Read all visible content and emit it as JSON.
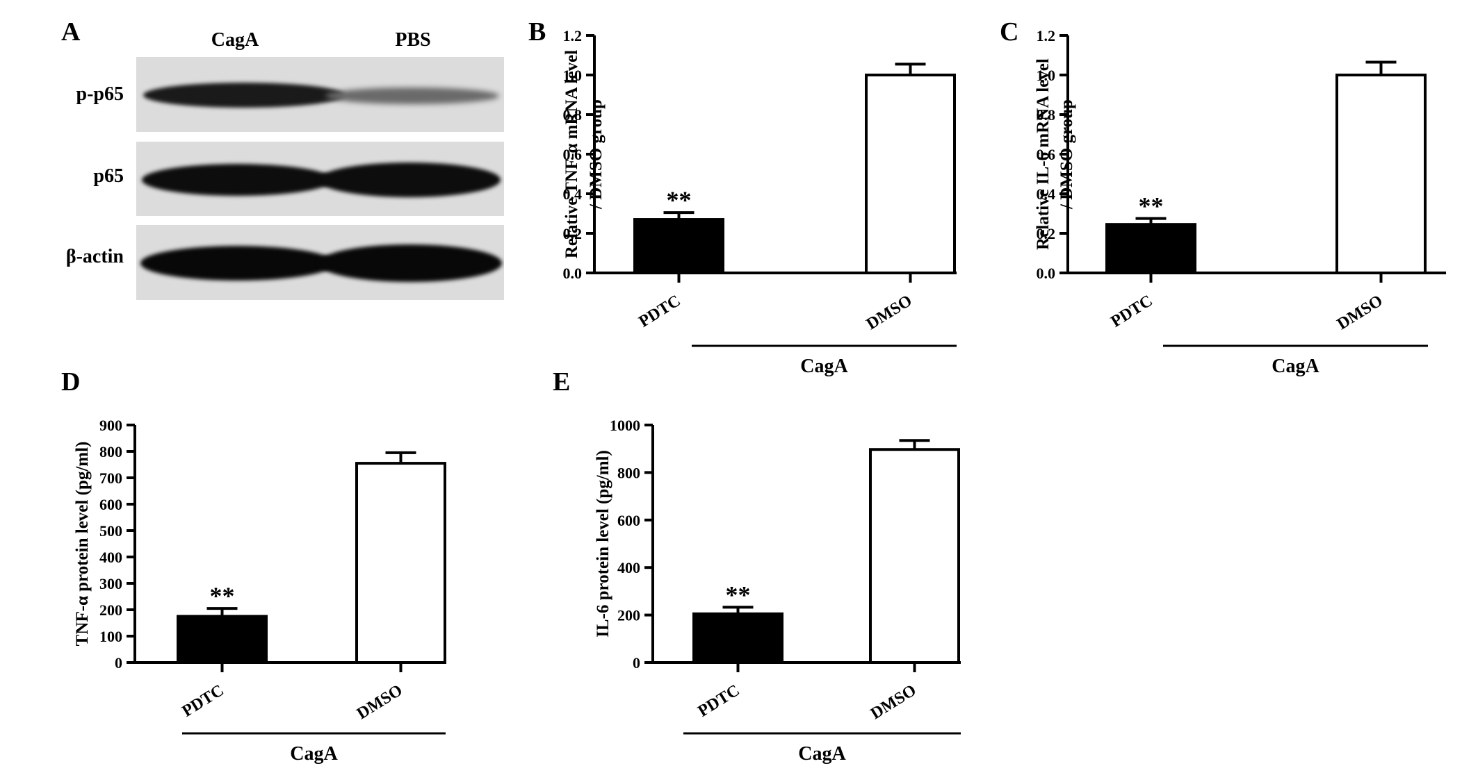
{
  "panel_a": {
    "letter": "A",
    "columns": [
      "CagA",
      "PBS"
    ],
    "rows": [
      "p-p65",
      "p65",
      "β-actin"
    ]
  },
  "chart_data": [
    {
      "panel": "B",
      "type": "bar",
      "categories": [
        "PDTC",
        "DMSO"
      ],
      "values": [
        0.27,
        1.0
      ],
      "errors": [
        0.035,
        0.055
      ],
      "colors": [
        "#000000",
        "#ffffff"
      ],
      "significance": [
        "**",
        ""
      ],
      "ylabel": [
        "Relative TNF-α  mRNA level",
        "/ DMSO group"
      ],
      "ylim": [
        0,
        1.2
      ],
      "yticks": [
        0.0,
        0.2,
        0.4,
        0.6,
        0.8,
        1.0,
        1.2
      ],
      "ytick_labels": [
        "0.0",
        "0.2",
        "0.4",
        "0.6",
        "0.8",
        "1.0",
        "1.2"
      ],
      "group_label": "CagA"
    },
    {
      "panel": "C",
      "type": "bar",
      "categories": [
        "PDTC",
        "DMSO"
      ],
      "values": [
        0.245,
        1.0
      ],
      "errors": [
        0.03,
        0.065
      ],
      "colors": [
        "#000000",
        "#ffffff"
      ],
      "significance": [
        "**",
        ""
      ],
      "ylabel": [
        "Relative IL-6 mRNA level",
        "/ DMSO group"
      ],
      "ylim": [
        0,
        1.2
      ],
      "yticks": [
        0.0,
        0.2,
        0.4,
        0.6,
        0.8,
        1.0,
        1.2
      ],
      "ytick_labels": [
        "0.0",
        "0.2",
        "0.4",
        "0.6",
        "0.8",
        "1.0",
        "1.2"
      ],
      "group_label": "CagA"
    },
    {
      "panel": "D",
      "type": "bar",
      "categories": [
        "PDTC",
        "DMSO"
      ],
      "values": [
        175,
        755
      ],
      "errors": [
        30,
        40
      ],
      "colors": [
        "#000000",
        "#ffffff"
      ],
      "significance": [
        "**",
        ""
      ],
      "ylabel": [
        "TNF-α  protein level  (pg/ml)"
      ],
      "ylim": [
        0,
        900
      ],
      "yticks": [
        0,
        100,
        200,
        300,
        400,
        500,
        600,
        700,
        800,
        900
      ],
      "ytick_labels": [
        "0",
        "100",
        "200",
        "300",
        "400",
        "500",
        "600",
        "700",
        "800",
        "900"
      ],
      "group_label": "CagA"
    },
    {
      "panel": "E",
      "type": "bar",
      "categories": [
        "PDTC",
        "DMSO"
      ],
      "values": [
        205,
        897
      ],
      "errors": [
        28,
        38
      ],
      "colors": [
        "#000000",
        "#ffffff"
      ],
      "significance": [
        "**",
        ""
      ],
      "ylabel": [
        "IL-6 protein level (pg/ml)"
      ],
      "ylim": [
        0,
        1000
      ],
      "yticks": [
        0,
        200,
        400,
        600,
        800,
        1000
      ],
      "ytick_labels": [
        "0",
        "200",
        "400",
        "600",
        "800",
        "1000"
      ],
      "group_label": "CagA"
    }
  ]
}
